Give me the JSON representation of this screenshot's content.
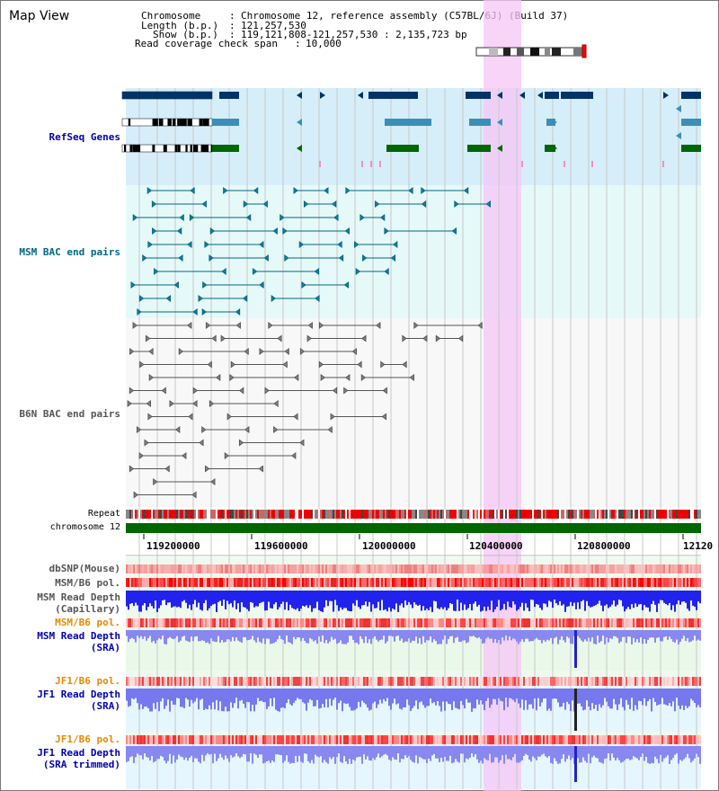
{
  "app": {
    "title": "Map View"
  },
  "info": {
    "chromosome_key": "Chromosome",
    "chromosome_val": "Chromosome 12, reference assembly (C57BL/6J) (Build 37)",
    "length_key": "Length (b.p.)",
    "length_val": "121,257,530",
    "show_key": "Show (b.p.)",
    "show_val": "119,121,808-121,257,530 : 2,135,723 bp",
    "coverage_key": "Read coverage check span",
    "coverage_val": "10,000"
  },
  "tracks": {
    "refseq": "RefSeq Genes",
    "msm_bac": "MSM BAC end pairs",
    "b6n_bac": "B6N BAC end pairs",
    "repeat": "Repeat",
    "chromosome": "chromosome 12",
    "dbsnp": "dbSNP(Mouse)",
    "msm_b6_pol_1": "MSM/B6 pol.",
    "msm_depth_cap_1": "MSM Read Depth",
    "msm_depth_cap_2": "(Capillary)",
    "msm_b6_pol_2": "MSM/B6 pol.",
    "msm_depth_sra_1": "MSM Read Depth",
    "msm_depth_sra_2": "(SRA)",
    "jf1_b6_pol_1": "JF1/B6 pol.",
    "jf1_depth_sra_1": "JF1 Read Depth",
    "jf1_depth_sra_2": "(SRA)",
    "jf1_b6_pol_2": "JF1/B6 pol.",
    "jf1_depth_trim_1": "JF1 Read Depth",
    "jf1_depth_trim_2": "(SRA trimmed)"
  },
  "axis": {
    "ticks": [
      "119200000",
      "119600000",
      "120000000",
      "120400000",
      "120800000",
      "12120"
    ]
  },
  "colors": {
    "refseq_label": "#0000aa",
    "msm_bac_label": "#006680",
    "b6n_bac_label": "#555555",
    "orange_label": "#e68a00",
    "blue_label": "#0000aa",
    "highlight": "#f0b8f0",
    "gene_dark": "#003366",
    "gene_light": "#3a8fb7",
    "gene_green": "#006600",
    "chrom_green": "#006600"
  }
}
